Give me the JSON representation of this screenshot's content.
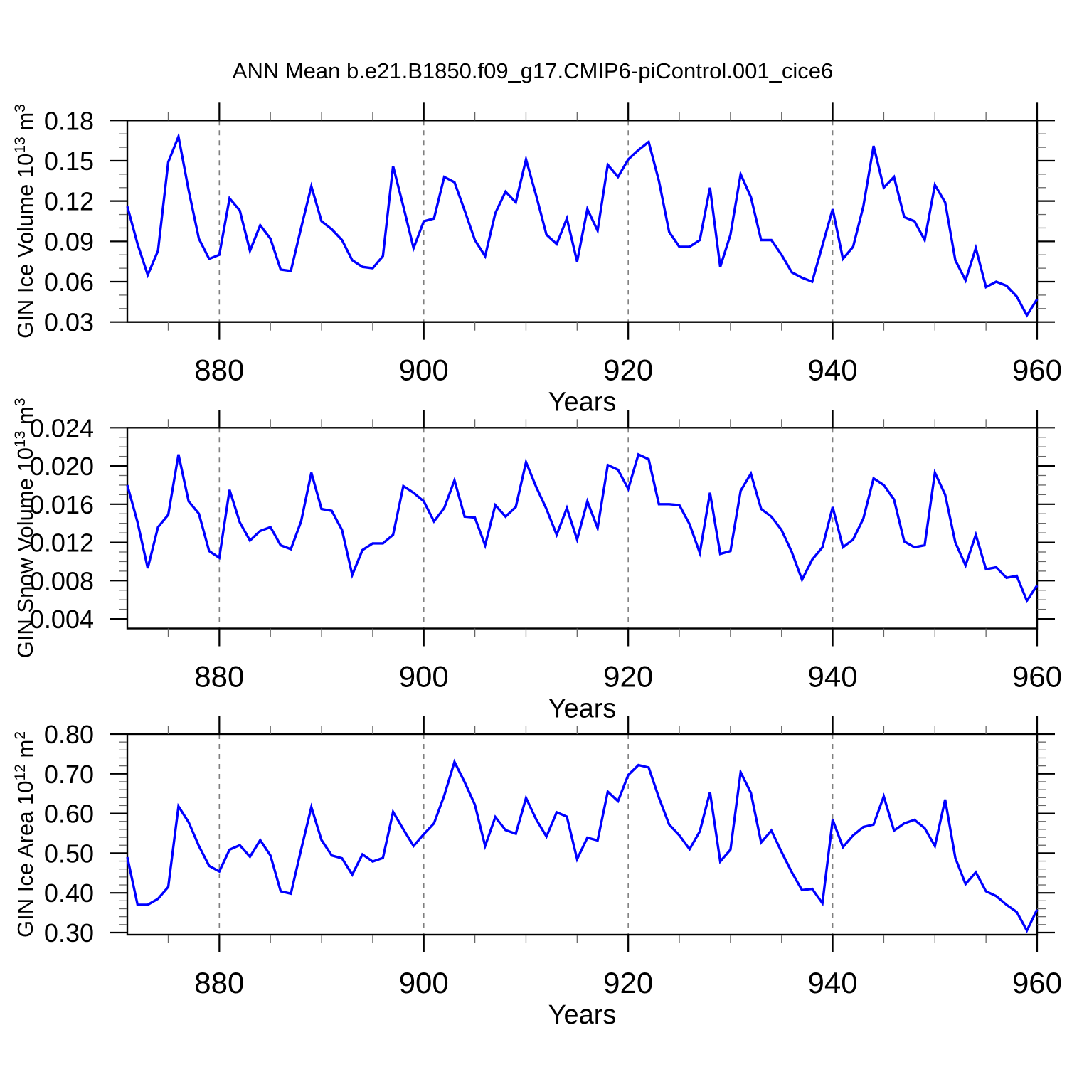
{
  "title": "ANN Mean b.e21.B1850.f09_g17.CMIP6-piControl.001_cice6",
  "x_axis": {
    "label": "Years",
    "tick_labels": [
      "880",
      "900",
      "920",
      "940",
      "960"
    ],
    "tick_values": [
      880,
      900,
      920,
      940,
      960
    ],
    "minor_tick_step": 5,
    "gridline_years": [
      880,
      900,
      920,
      940
    ],
    "start_year": 871,
    "end_year": 960
  },
  "line_color": "#0000ff",
  "chart_data": [
    {
      "type": "line",
      "name": "gin-ice-volume",
      "ylabel": "GIN Ice Volume 10¹³ m³",
      "ylabel_parts": [
        {
          "t": "GIN Ice Volume 10"
        },
        {
          "t": "13",
          "sup": true
        },
        {
          "t": " m"
        },
        {
          "t": "3",
          "sup": true
        }
      ],
      "xlabel": "Years",
      "ylim": [
        0.03,
        0.18
      ],
      "yticks": [
        0.03,
        0.06,
        0.09,
        0.12,
        0.15,
        0.18
      ],
      "ytick_labels": [
        "0.03",
        "0.06",
        "0.09",
        "0.12",
        "0.15",
        "0.18"
      ],
      "y_minor_step": 0.01,
      "x_start": 871,
      "x_step": 1,
      "values": [
        0.116,
        0.088,
        0.065,
        0.083,
        0.149,
        0.168,
        0.128,
        0.092,
        0.077,
        0.08,
        0.122,
        0.113,
        0.083,
        0.102,
        0.092,
        0.069,
        0.068,
        0.1,
        0.131,
        0.105,
        0.099,
        0.091,
        0.076,
        0.071,
        0.07,
        0.079,
        0.146,
        0.116,
        0.085,
        0.105,
        0.107,
        0.138,
        0.134,
        0.113,
        0.091,
        0.079,
        0.111,
        0.127,
        0.119,
        0.151,
        0.124,
        0.095,
        0.088,
        0.107,
        0.075,
        0.114,
        0.098,
        0.147,
        0.138,
        0.151,
        0.158,
        0.164,
        0.135,
        0.097,
        0.086,
        0.086,
        0.091,
        0.13,
        0.071,
        0.095,
        0.14,
        0.123,
        0.091,
        0.091,
        0.08,
        0.067,
        0.063,
        0.06,
        0.087,
        0.114,
        0.077,
        0.086,
        0.116,
        0.161,
        0.13,
        0.138,
        0.108,
        0.105,
        0.091,
        0.132,
        0.119,
        0.076,
        0.061,
        0.085,
        0.056,
        0.06,
        0.057,
        0.049,
        0.035,
        0.047
      ]
    },
    {
      "type": "line",
      "name": "gin-snow-volume",
      "ylabel": "GIN Snow Volume 10¹³ m³",
      "ylabel_parts": [
        {
          "t": "GIN Snow Volume 10"
        },
        {
          "t": "13",
          "sup": true
        },
        {
          "t": " m"
        },
        {
          "t": "3",
          "sup": true
        }
      ],
      "xlabel": "Years",
      "ylim": [
        0.003,
        0.024
      ],
      "yticks": [
        0.004,
        0.008,
        0.012,
        0.016,
        0.02,
        0.024
      ],
      "ytick_labels": [
        "0.004",
        "0.008",
        "0.012",
        "0.016",
        "0.020",
        "0.024"
      ],
      "y_minor_step": 0.001,
      "x_start": 871,
      "x_step": 1,
      "values": [
        0.018,
        0.0141,
        0.0093,
        0.0136,
        0.0149,
        0.0212,
        0.0163,
        0.015,
        0.0111,
        0.0104,
        0.0175,
        0.0141,
        0.0122,
        0.0132,
        0.0136,
        0.0117,
        0.0113,
        0.0142,
        0.0193,
        0.0155,
        0.0153,
        0.0133,
        0.0086,
        0.0112,
        0.0119,
        0.0119,
        0.0128,
        0.0179,
        0.0172,
        0.0163,
        0.0142,
        0.0156,
        0.0185,
        0.0147,
        0.0146,
        0.0117,
        0.0159,
        0.0147,
        0.0157,
        0.0204,
        0.0178,
        0.0155,
        0.0128,
        0.0156,
        0.0123,
        0.0163,
        0.0135,
        0.0201,
        0.0196,
        0.0176,
        0.0212,
        0.0207,
        0.016,
        0.016,
        0.0159,
        0.0139,
        0.0109,
        0.0172,
        0.0108,
        0.0111,
        0.0174,
        0.0192,
        0.0155,
        0.0147,
        0.0133,
        0.011,
        0.0081,
        0.0102,
        0.0115,
        0.0157,
        0.0115,
        0.0123,
        0.0145,
        0.0187,
        0.018,
        0.0165,
        0.0121,
        0.0115,
        0.0117,
        0.0193,
        0.017,
        0.012,
        0.0096,
        0.0128,
        0.0092,
        0.0094,
        0.0083,
        0.0085,
        0.0059,
        0.0075
      ]
    },
    {
      "type": "line",
      "name": "gin-ice-area",
      "ylabel": "GIN Ice Area 10¹² m²",
      "ylabel_parts": [
        {
          "t": "GIN Ice Area 10"
        },
        {
          "t": "12",
          "sup": true
        },
        {
          "t": " m"
        },
        {
          "t": "2",
          "sup": true
        }
      ],
      "xlabel": "Years",
      "ylim": [
        0.2946,
        0.8
      ],
      "yticks": [
        0.3,
        0.4,
        0.5,
        0.6,
        0.7,
        0.8
      ],
      "ytick_labels": [
        "0.30",
        "0.40",
        "0.50",
        "0.60",
        "0.70",
        "0.80"
      ],
      "y_minor_step": 0.02,
      "x_start": 871,
      "x_step": 1,
      "values": [
        0.49,
        0.37,
        0.37,
        0.385,
        0.415,
        0.618,
        0.578,
        0.518,
        0.468,
        0.454,
        0.509,
        0.52,
        0.491,
        0.533,
        0.494,
        0.404,
        0.398,
        0.509,
        0.616,
        0.533,
        0.494,
        0.487,
        0.446,
        0.497,
        0.479,
        0.488,
        0.604,
        0.56,
        0.518,
        0.548,
        0.575,
        0.645,
        0.73,
        0.679,
        0.622,
        0.518,
        0.591,
        0.558,
        0.549,
        0.639,
        0.585,
        0.542,
        0.603,
        0.592,
        0.485,
        0.539,
        0.532,
        0.655,
        0.631,
        0.697,
        0.722,
        0.716,
        0.64,
        0.572,
        0.545,
        0.51,
        0.555,
        0.654,
        0.479,
        0.509,
        0.704,
        0.652,
        0.527,
        0.557,
        0.503,
        0.452,
        0.407,
        0.41,
        0.374,
        0.584,
        0.515,
        0.545,
        0.566,
        0.572,
        0.643,
        0.557,
        0.575,
        0.584,
        0.563,
        0.518,
        0.635,
        0.488,
        0.422,
        0.452,
        0.404,
        0.392,
        0.37,
        0.352,
        0.305,
        0.358
      ]
    }
  ]
}
